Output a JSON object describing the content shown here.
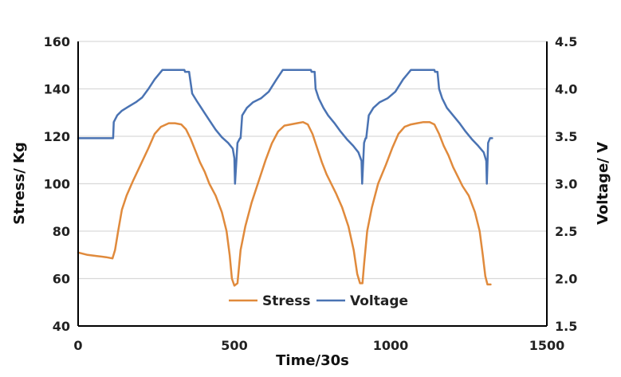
{
  "chart_data": {
    "type": "line",
    "title": "",
    "xlabel": "Time/30s",
    "ylabel_left": "Stress/ Kg",
    "ylabel_right": "Voltage/ V",
    "xlim": [
      0,
      1500
    ],
    "ylim_left": [
      40,
      160
    ],
    "ylim_right": [
      1.5,
      4.5
    ],
    "x_ticks": [
      "0",
      "500",
      "1000",
      "1500"
    ],
    "y_ticks_left": [
      "40",
      "60",
      "80",
      "100",
      "120",
      "140",
      "160"
    ],
    "y_ticks_right": [
      "1.5",
      "2.0",
      "2.5",
      "3.0",
      "3.5",
      "4.0",
      "4.5"
    ],
    "grid": "horizontal",
    "legend": "bottom-center",
    "colors": {
      "Stress": "#e08a3c",
      "Voltage": "#4a73b3",
      "grid": "#d9d9d9",
      "axis": "#000000"
    },
    "series": [
      {
        "name": "Stress",
        "axis": "left",
        "x": [
          0,
          30,
          60,
          90,
          110,
          118,
          128,
          140,
          155,
          175,
          200,
          225,
          245,
          265,
          290,
          310,
          330,
          345,
          360,
          375,
          390,
          405,
          420,
          440,
          460,
          475,
          485,
          492,
          500,
          510,
          520,
          535,
          555,
          580,
          600,
          620,
          640,
          660,
          680,
          700,
          720,
          735,
          750,
          765,
          780,
          795,
          810,
          825,
          845,
          865,
          882,
          893,
          902,
          910,
          915,
          925,
          940,
          960,
          985,
          1005,
          1025,
          1045,
          1065,
          1085,
          1105,
          1125,
          1140,
          1155,
          1170,
          1185,
          1200,
          1215,
          1230,
          1250,
          1270,
          1285,
          1295,
          1303,
          1310,
          1320
        ],
        "values": [
          71,
          70,
          69.5,
          69,
          68.5,
          72,
          80,
          89,
          95,
          101,
          108,
          115,
          121,
          124,
          125.5,
          125.5,
          125,
          123,
          119,
          114,
          109,
          105,
          100,
          95,
          88,
          80,
          70,
          60,
          57,
          58,
          72,
          82,
          92,
          102,
          110,
          117,
          122,
          124.5,
          125,
          125.5,
          126,
          125,
          121,
          115,
          109,
          104,
          100,
          96,
          90,
          82,
          72,
          62,
          58,
          58,
          66,
          80,
          90,
          100,
          108,
          115,
          121,
          124,
          125,
          125.5,
          126,
          126,
          125,
          121,
          116,
          112,
          107,
          103,
          99,
          95,
          88,
          80,
          70,
          61,
          57.5,
          57.5
        ]
      },
      {
        "name": "Voltage",
        "axis": "right",
        "x": [
          0,
          60,
          112,
          114,
          125,
          140,
          160,
          185,
          205,
          225,
          245,
          270,
          300,
          325,
          340,
          342,
          350,
          355,
          365,
          380,
          400,
          420,
          440,
          460,
          480,
          495,
          500,
          502,
          510,
          518,
          520,
          525,
          540,
          560,
          585,
          610,
          635,
          655,
          680,
          700,
          730,
          745,
          747,
          757,
          760,
          770,
          785,
          800,
          820,
          840,
          860,
          880,
          897,
          907,
          909,
          915,
          920,
          922,
          930,
          945,
          965,
          990,
          1015,
          1040,
          1065,
          1090,
          1120,
          1140,
          1142,
          1150,
          1155,
          1165,
          1180,
          1200,
          1220,
          1240,
          1260,
          1280,
          1298,
          1306,
          1308,
          1312,
          1318,
          1325
        ],
        "values": [
          3.48,
          3.48,
          3.48,
          3.65,
          3.72,
          3.77,
          3.81,
          3.86,
          3.91,
          4.0,
          4.1,
          4.2,
          4.2,
          4.2,
          4.2,
          4.18,
          4.18,
          4.18,
          3.95,
          3.87,
          3.77,
          3.67,
          3.57,
          3.49,
          3.43,
          3.37,
          3.27,
          3.0,
          3.43,
          3.48,
          3.48,
          3.72,
          3.8,
          3.86,
          3.9,
          3.97,
          4.1,
          4.2,
          4.2,
          4.2,
          4.2,
          4.2,
          4.18,
          4.18,
          4.0,
          3.9,
          3.8,
          3.72,
          3.64,
          3.55,
          3.47,
          3.4,
          3.33,
          3.24,
          3.0,
          3.43,
          3.48,
          3.48,
          3.72,
          3.8,
          3.86,
          3.9,
          3.97,
          4.1,
          4.2,
          4.2,
          4.2,
          4.2,
          4.18,
          4.18,
          4.0,
          3.9,
          3.8,
          3.72,
          3.64,
          3.55,
          3.47,
          3.4,
          3.33,
          3.24,
          3.0,
          3.43,
          3.48,
          3.48
        ]
      }
    ]
  }
}
